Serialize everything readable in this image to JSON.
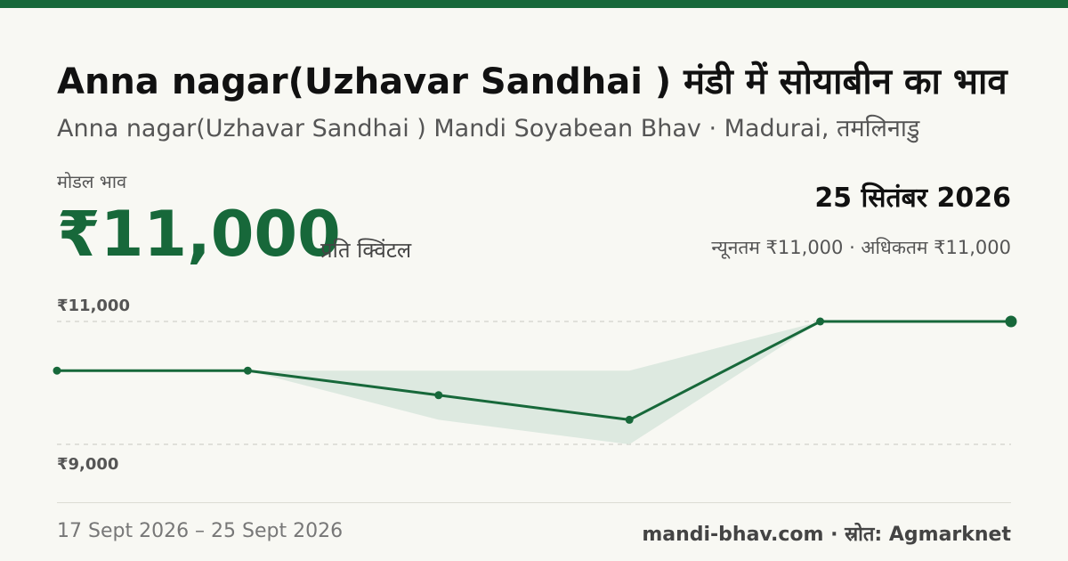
{
  "header": {
    "title": "Anna nagar(Uzhavar Sandhai ) मंडी में सोयाबीन का भाव",
    "subtitle": "Anna nagar(Uzhavar Sandhai ) Mandi Soyabean Bhav · Madurai, तमलिनाडु"
  },
  "price": {
    "label": "मोडल भाव",
    "value": "₹11,000",
    "unit": "प्रति क्विंटल",
    "date": "25 सितंबर 2026",
    "range": "न्यूनतम ₹11,000 · अधिकतम ₹11,000"
  },
  "chart_data": {
    "type": "line",
    "x": [
      1,
      2,
      3,
      4,
      5,
      6
    ],
    "series": [
      {
        "values": [
          10200,
          10200,
          9800,
          9400,
          11000,
          11000
        ]
      }
    ],
    "band": {
      "min": [
        10200,
        10200,
        9400,
        9000,
        11000,
        11000
      ],
      "max": [
        10200,
        10200,
        10200,
        10200,
        11000,
        11000
      ]
    },
    "ylim": [
      8600,
      11200
    ],
    "yticks": [
      {
        "value": 11000,
        "label": "₹11,000"
      },
      {
        "value": 9000,
        "label": "₹9,000"
      }
    ],
    "colors": {
      "line": "#17683a",
      "band": "#dde9e0",
      "grid": "#c8c8c0"
    }
  },
  "footer": {
    "period": "17 Sept 2026 – 25 Sept 2026",
    "source": "mandi-bhav.com · स्रोत: Agmarknet"
  }
}
